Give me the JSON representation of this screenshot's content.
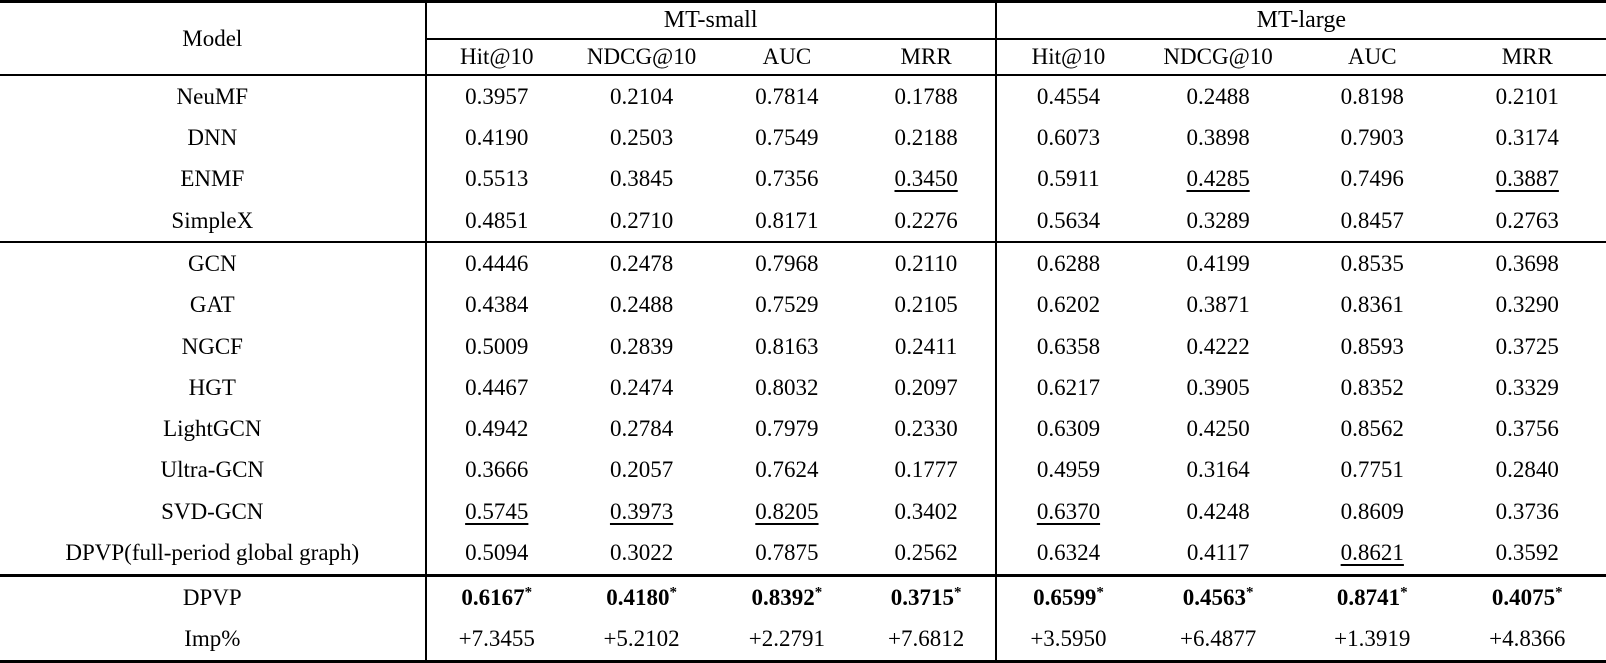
{
  "table": {
    "header": {
      "model": "Model",
      "groups": [
        {
          "label": "MT-small",
          "metrics": [
            "Hit@10",
            "NDCG@10",
            "AUC",
            "MRR"
          ]
        },
        {
          "label": "MT-large",
          "metrics": [
            "Hit@10",
            "NDCG@10",
            "AUC",
            "MRR"
          ]
        }
      ]
    },
    "sections": [
      {
        "rows": [
          {
            "model": "NeuMF",
            "values": [
              {
                "text": "0.3957"
              },
              {
                "text": "0.2104"
              },
              {
                "text": "0.7814"
              },
              {
                "text": "0.1788"
              },
              {
                "text": "0.4554"
              },
              {
                "text": "0.2488"
              },
              {
                "text": "0.8198"
              },
              {
                "text": "0.2101"
              }
            ]
          },
          {
            "model": "DNN",
            "values": [
              {
                "text": "0.4190"
              },
              {
                "text": "0.2503"
              },
              {
                "text": "0.7549"
              },
              {
                "text": "0.2188"
              },
              {
                "text": "0.6073"
              },
              {
                "text": "0.3898"
              },
              {
                "text": "0.7903"
              },
              {
                "text": "0.3174"
              }
            ]
          },
          {
            "model": "ENMF",
            "values": [
              {
                "text": "0.5513"
              },
              {
                "text": "0.3845"
              },
              {
                "text": "0.7356"
              },
              {
                "text": "0.3450",
                "underline": true
              },
              {
                "text": "0.5911"
              },
              {
                "text": "0.4285",
                "underline": true
              },
              {
                "text": "0.7496"
              },
              {
                "text": "0.3887",
                "underline": true
              }
            ]
          },
          {
            "model": "SimpleX",
            "values": [
              {
                "text": "0.4851"
              },
              {
                "text": "0.2710"
              },
              {
                "text": "0.8171"
              },
              {
                "text": "0.2276"
              },
              {
                "text": "0.5634"
              },
              {
                "text": "0.3289"
              },
              {
                "text": "0.8457"
              },
              {
                "text": "0.2763"
              }
            ]
          }
        ]
      },
      {
        "rows": [
          {
            "model": "GCN",
            "values": [
              {
                "text": "0.4446"
              },
              {
                "text": "0.2478"
              },
              {
                "text": "0.7968"
              },
              {
                "text": "0.2110"
              },
              {
                "text": "0.6288"
              },
              {
                "text": "0.4199"
              },
              {
                "text": "0.8535"
              },
              {
                "text": "0.3698"
              }
            ]
          },
          {
            "model": "GAT",
            "values": [
              {
                "text": "0.4384"
              },
              {
                "text": "0.2488"
              },
              {
                "text": "0.7529"
              },
              {
                "text": "0.2105"
              },
              {
                "text": "0.6202"
              },
              {
                "text": "0.3871"
              },
              {
                "text": "0.8361"
              },
              {
                "text": "0.3290"
              }
            ]
          },
          {
            "model": "NGCF",
            "values": [
              {
                "text": "0.5009"
              },
              {
                "text": "0.2839"
              },
              {
                "text": "0.8163"
              },
              {
                "text": "0.2411"
              },
              {
                "text": "0.6358"
              },
              {
                "text": "0.4222"
              },
              {
                "text": "0.8593"
              },
              {
                "text": "0.3725"
              }
            ]
          },
          {
            "model": "HGT",
            "values": [
              {
                "text": "0.4467"
              },
              {
                "text": "0.2474"
              },
              {
                "text": "0.8032"
              },
              {
                "text": "0.2097"
              },
              {
                "text": "0.6217"
              },
              {
                "text": "0.3905"
              },
              {
                "text": "0.8352"
              },
              {
                "text": "0.3329"
              }
            ]
          },
          {
            "model": "LightGCN",
            "values": [
              {
                "text": "0.4942"
              },
              {
                "text": "0.2784"
              },
              {
                "text": "0.7979"
              },
              {
                "text": "0.2330"
              },
              {
                "text": "0.6309"
              },
              {
                "text": "0.4250"
              },
              {
                "text": "0.8562"
              },
              {
                "text": "0.3756"
              }
            ]
          },
          {
            "model": "Ultra-GCN",
            "values": [
              {
                "text": "0.3666"
              },
              {
                "text": "0.2057"
              },
              {
                "text": "0.7624"
              },
              {
                "text": "0.1777"
              },
              {
                "text": "0.4959"
              },
              {
                "text": "0.3164"
              },
              {
                "text": "0.7751"
              },
              {
                "text": "0.2840"
              }
            ]
          },
          {
            "model": "SVD-GCN",
            "values": [
              {
                "text": "0.5745",
                "underline": true
              },
              {
                "text": "0.3973",
                "underline": true
              },
              {
                "text": "0.8205",
                "underline": true
              },
              {
                "text": "0.3402"
              },
              {
                "text": "0.6370",
                "underline": true
              },
              {
                "text": "0.4248"
              },
              {
                "text": "0.8609"
              },
              {
                "text": "0.3736"
              }
            ]
          },
          {
            "model": "DPVP(full-period global graph)",
            "values": [
              {
                "text": "0.5094"
              },
              {
                "text": "0.3022"
              },
              {
                "text": "0.7875"
              },
              {
                "text": "0.2562"
              },
              {
                "text": "0.6324"
              },
              {
                "text": "0.4117"
              },
              {
                "text": "0.8621",
                "underline": true
              },
              {
                "text": "0.3592"
              }
            ]
          }
        ]
      },
      {
        "summary": true,
        "rows": [
          {
            "model": "DPVP",
            "values": [
              {
                "text": "0.6167",
                "bold": true,
                "star": true
              },
              {
                "text": "0.4180",
                "bold": true,
                "star": true
              },
              {
                "text": "0.8392",
                "bold": true,
                "star": true
              },
              {
                "text": "0.3715",
                "bold": true,
                "star": true
              },
              {
                "text": "0.6599",
                "bold": true,
                "star": true
              },
              {
                "text": "0.4563",
                "bold": true,
                "star": true
              },
              {
                "text": "0.8741",
                "bold": true,
                "star": true
              },
              {
                "text": "0.4075",
                "bold": true,
                "star": true
              }
            ]
          },
          {
            "model": "Imp%",
            "values": [
              {
                "text": "+7.3455"
              },
              {
                "text": "+5.2102"
              },
              {
                "text": "+2.2791"
              },
              {
                "text": "+7.6812"
              },
              {
                "text": "+3.5950"
              },
              {
                "text": "+6.4877"
              },
              {
                "text": "+1.3919"
              },
              {
                "text": "+4.8366"
              }
            ]
          }
        ]
      }
    ]
  }
}
